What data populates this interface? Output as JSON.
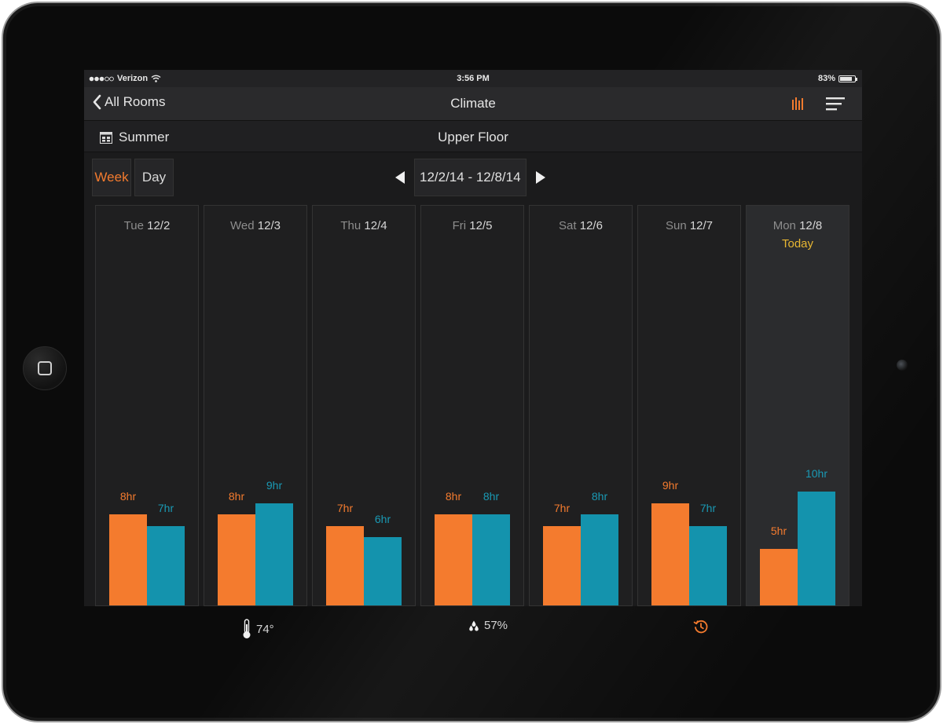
{
  "statusbar": {
    "carrier": "Verizon",
    "time": "3:56 PM",
    "battery": "83%"
  },
  "navbar": {
    "back_label": "All Rooms",
    "title": "Climate"
  },
  "subbar": {
    "schedule": "Summer",
    "floor": "Upper Floor"
  },
  "tabs": [
    {
      "label": "Week",
      "active": true
    },
    {
      "label": "Day",
      "active": false
    }
  ],
  "date_range": "12/2/14 - 12/8/14",
  "today_label": "Today",
  "colors": {
    "heat": "#f47b2e",
    "cool": "#1493ad",
    "today": "#e8b732"
  },
  "chart_data": {
    "type": "bar",
    "categories": [
      "Tue 12/2",
      "Wed 12/3",
      "Thu 12/4",
      "Fri 12/5",
      "Sat 12/6",
      "Sun 12/7",
      "Mon 12/8"
    ],
    "days": [
      {
        "dow": "Tue",
        "date": "12/2",
        "heat_label": "8hr",
        "cool_label": "7hr"
      },
      {
        "dow": "Wed",
        "date": "12/3",
        "heat_label": "8hr",
        "cool_label": "9hr"
      },
      {
        "dow": "Thu",
        "date": "12/4",
        "heat_label": "7hr",
        "cool_label": "6hr"
      },
      {
        "dow": "Fri",
        "date": "12/5",
        "heat_label": "8hr",
        "cool_label": "8hr"
      },
      {
        "dow": "Sat",
        "date": "12/6",
        "heat_label": "7hr",
        "cool_label": "8hr"
      },
      {
        "dow": "Sun",
        "date": "12/7",
        "heat_label": "9hr",
        "cool_label": "7hr"
      },
      {
        "dow": "Mon",
        "date": "12/8",
        "heat_label": "5hr",
        "cool_label": "10hr",
        "today": true
      }
    ],
    "series": [
      {
        "color": "#f47b2e",
        "values": [
          8,
          8,
          7,
          8,
          7,
          9,
          5
        ]
      },
      {
        "color": "#1493ad",
        "values": [
          7,
          9,
          6,
          8,
          8,
          7,
          10
        ]
      }
    ]
  },
  "bottom": {
    "temperature": "74°",
    "humidity": "57%"
  }
}
